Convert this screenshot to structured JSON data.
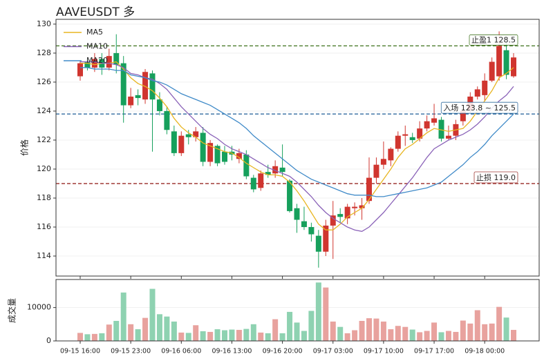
{
  "chart_data": [
    {
      "type": "candlestick",
      "title": "AAVEUSDT 多",
      "y_label": "价格",
      "categories": [
        "09-15 16:00",
        null,
        null,
        null,
        null,
        null,
        null,
        "09-15 23:00",
        null,
        null,
        null,
        null,
        null,
        null,
        "09-16 06:00",
        null,
        null,
        null,
        null,
        null,
        null,
        "09-16 13:00",
        null,
        null,
        null,
        null,
        null,
        null,
        "09-16 20:00",
        null,
        null,
        null,
        null,
        null,
        null,
        "09-17 03:00",
        null,
        null,
        null,
        null,
        null,
        null,
        "09-17 10:00",
        null,
        null,
        null,
        null,
        null,
        null,
        "09-17 17:00",
        null,
        null,
        null,
        null,
        null,
        null,
        "09-18 00:00",
        null,
        null,
        null,
        null
      ],
      "candles": {
        "open": [
          126.4,
          127.4,
          127.0,
          127.6,
          127.0,
          128.0,
          127.3,
          124.4,
          125.1,
          124.8,
          126.6,
          124.8,
          124.0,
          122.6,
          121.1,
          122.4,
          122.2,
          122.5,
          120.5,
          121.6,
          121.2,
          121.2,
          120.7,
          121.0,
          119.4,
          118.7,
          119.8,
          119.7,
          120.1,
          119.2,
          117.3,
          116.4,
          116.0,
          115.4,
          114.3,
          116.1,
          116.9,
          116.6,
          117.3,
          117.3,
          117.8,
          119.4,
          120.3,
          120.6,
          121.4,
          122.3,
          122.2,
          122.1,
          122.8,
          123.2,
          123.4,
          122.1,
          122.3,
          123.3,
          124.1,
          125.0,
          125.1,
          126.1,
          126.4,
          128.2,
          126.4
        ],
        "high": [
          127.5,
          127.6,
          128.0,
          128.0,
          128.3,
          129.3,
          127.8,
          125.6,
          125.5,
          126.9,
          126.8,
          125.3,
          124.3,
          123.0,
          122.6,
          122.7,
          122.9,
          122.9,
          122.0,
          121.7,
          121.6,
          121.6,
          121.4,
          121.3,
          119.6,
          119.9,
          120.3,
          120.6,
          121.7,
          119.3,
          117.6,
          117.4,
          116.3,
          115.8,
          116.5,
          117.8,
          117.3,
          117.6,
          117.7,
          118.0,
          120.8,
          120.8,
          121.9,
          121.5,
          122.6,
          123.0,
          122.5,
          123.3,
          123.7,
          124.5,
          123.6,
          123.0,
          123.4,
          124.2,
          125.3,
          125.7,
          126.6,
          127.7,
          129.5,
          128.8,
          128.0
        ],
        "low": [
          126.1,
          126.8,
          126.7,
          126.5,
          126.8,
          126.6,
          123.2,
          124.2,
          124.4,
          124.5,
          121.2,
          123.7,
          122.4,
          120.9,
          120.9,
          121.7,
          121.9,
          120.2,
          120.2,
          120.2,
          120.3,
          120.6,
          120.4,
          119.3,
          118.4,
          118.5,
          119.4,
          119.4,
          119.5,
          117.0,
          115.6,
          115.8,
          115.0,
          113.2,
          114.0,
          113.8,
          116.3,
          116.2,
          116.8,
          116.5,
          117.6,
          119.0,
          120.0,
          120.2,
          121.2,
          121.6,
          121.8,
          121.9,
          122.6,
          123.0,
          121.9,
          122.0,
          122.0,
          123.0,
          123.9,
          124.8,
          124.7,
          126.0,
          126.1,
          126.2,
          126.3
        ],
        "close": [
          127.3,
          127.0,
          127.6,
          127.0,
          127.8,
          127.2,
          124.4,
          125.0,
          124.9,
          126.7,
          124.8,
          124.0,
          122.7,
          121.1,
          122.3,
          122.2,
          122.6,
          120.5,
          121.8,
          120.4,
          120.5,
          121.0,
          121.1,
          119.5,
          118.6,
          119.7,
          119.6,
          120.2,
          119.8,
          117.1,
          116.5,
          116.0,
          115.5,
          114.3,
          116.1,
          116.8,
          116.7,
          117.4,
          117.4,
          117.5,
          119.4,
          120.3,
          120.7,
          121.4,
          122.3,
          122.4,
          122.0,
          122.8,
          123.3,
          123.5,
          122.1,
          122.3,
          123.1,
          124.0,
          125.0,
          125.5,
          126.1,
          127.4,
          128.5,
          126.5,
          127.7
        ]
      },
      "up_color": "#d0352f",
      "down_color": "#16a05c",
      "series": [
        {
          "name": "MA5",
          "color": "#e8b520",
          "values": [
            127.3,
            127.3,
            127.2,
            127.3,
            127.3,
            127.4,
            126.9,
            126.3,
            125.9,
            125.7,
            125.4,
            124.9,
            124.3,
            123.5,
            122.9,
            122.5,
            122.2,
            121.8,
            121.6,
            121.4,
            121.2,
            121.1,
            120.8,
            120.4,
            120.1,
            119.8,
            119.6,
            119.6,
            119.5,
            119.1,
            118.5,
            117.8,
            117.0,
            116.2,
            115.8,
            115.8,
            116.2,
            116.7,
            117.0,
            117.3,
            117.9,
            118.6,
            119.3,
            120.0,
            120.8,
            121.4,
            121.7,
            122.1,
            122.5,
            122.8,
            122.7,
            122.6,
            122.7,
            122.8,
            123.3,
            124.0,
            124.7,
            125.4,
            126.3,
            126.6,
            127.0
          ]
        },
        {
          "name": "MA10",
          "color": "#8a62b8",
          "values": [
            127.4,
            127.4,
            127.4,
            127.3,
            127.3,
            127.2,
            127.0,
            126.6,
            126.5,
            126.3,
            126.2,
            125.9,
            125.5,
            124.9,
            124.3,
            123.8,
            123.3,
            122.8,
            122.4,
            122.1,
            121.7,
            121.4,
            121.2,
            121.0,
            120.7,
            120.4,
            120.1,
            119.9,
            119.7,
            119.5,
            119.1,
            118.6,
            118.1,
            117.5,
            117.0,
            116.6,
            116.3,
            116.0,
            115.8,
            115.7,
            116.0,
            116.5,
            117.0,
            117.6,
            118.2,
            118.8,
            119.4,
            120.1,
            120.8,
            121.4,
            121.7,
            122.0,
            122.2,
            122.4,
            122.7,
            123.1,
            123.6,
            124.2,
            124.7,
            125.1,
            125.7
          ]
        },
        {
          "name": "MA20",
          "color": "#3f8ac8",
          "values": [
            127.0,
            127.0,
            126.9,
            126.9,
            126.9,
            126.8,
            126.8,
            126.5,
            126.4,
            126.3,
            126.1,
            126.0,
            125.8,
            125.5,
            125.2,
            125.0,
            124.8,
            124.6,
            124.4,
            124.1,
            123.8,
            123.5,
            123.2,
            122.8,
            122.3,
            121.9,
            121.5,
            121.1,
            120.7,
            120.3,
            119.9,
            119.6,
            119.3,
            119.1,
            118.9,
            118.7,
            118.5,
            118.3,
            118.2,
            118.2,
            118.2,
            118.1,
            118.1,
            118.2,
            118.3,
            118.4,
            118.5,
            118.6,
            118.7,
            118.9,
            119.1,
            119.5,
            119.9,
            120.3,
            120.8,
            121.2,
            121.7,
            122.3,
            122.8,
            123.3,
            123.8
          ]
        }
      ],
      "levels": [
        {
          "label": "止盈1 128.5",
          "value": 128.5,
          "color": "#4a7a2a"
        },
        {
          "label": "入场 123.8 ~ 125.5",
          "value": 123.8,
          "color": "#2f6a9e"
        },
        {
          "label": "止损 119.0",
          "value": 119.0,
          "color": "#a03a36"
        }
      ],
      "ylim": [
        112.62,
        130.33
      ],
      "yticks": [
        114,
        116,
        118,
        120,
        122,
        124,
        126,
        128,
        130
      ],
      "grid": true,
      "legend": "upper left"
    },
    {
      "type": "bar",
      "y_label": "成交量",
      "values": [
        2400,
        2000,
        2100,
        2300,
        4900,
        6000,
        14500,
        5000,
        3500,
        6900,
        15600,
        8000,
        7300,
        5800,
        2500,
        2400,
        4700,
        2900,
        2700,
        3500,
        3200,
        3400,
        3300,
        3600,
        5000,
        2500,
        2300,
        6500,
        2300,
        8700,
        5500,
        3000,
        9000,
        17500,
        16000,
        5800,
        4200,
        2300,
        3200,
        6000,
        6800,
        6700,
        5800,
        3500,
        4500,
        4200,
        3400,
        2600,
        3000,
        5500,
        2600,
        3000,
        2700,
        6100,
        5200,
        9200,
        5000,
        5200,
        10200,
        7000,
        3300
      ],
      "up_color": "#e8a29e",
      "down_color": "#8ed2b1",
      "ylim": [
        0,
        18400
      ],
      "yticks": [
        0,
        10000
      ],
      "grid": true
    }
  ]
}
